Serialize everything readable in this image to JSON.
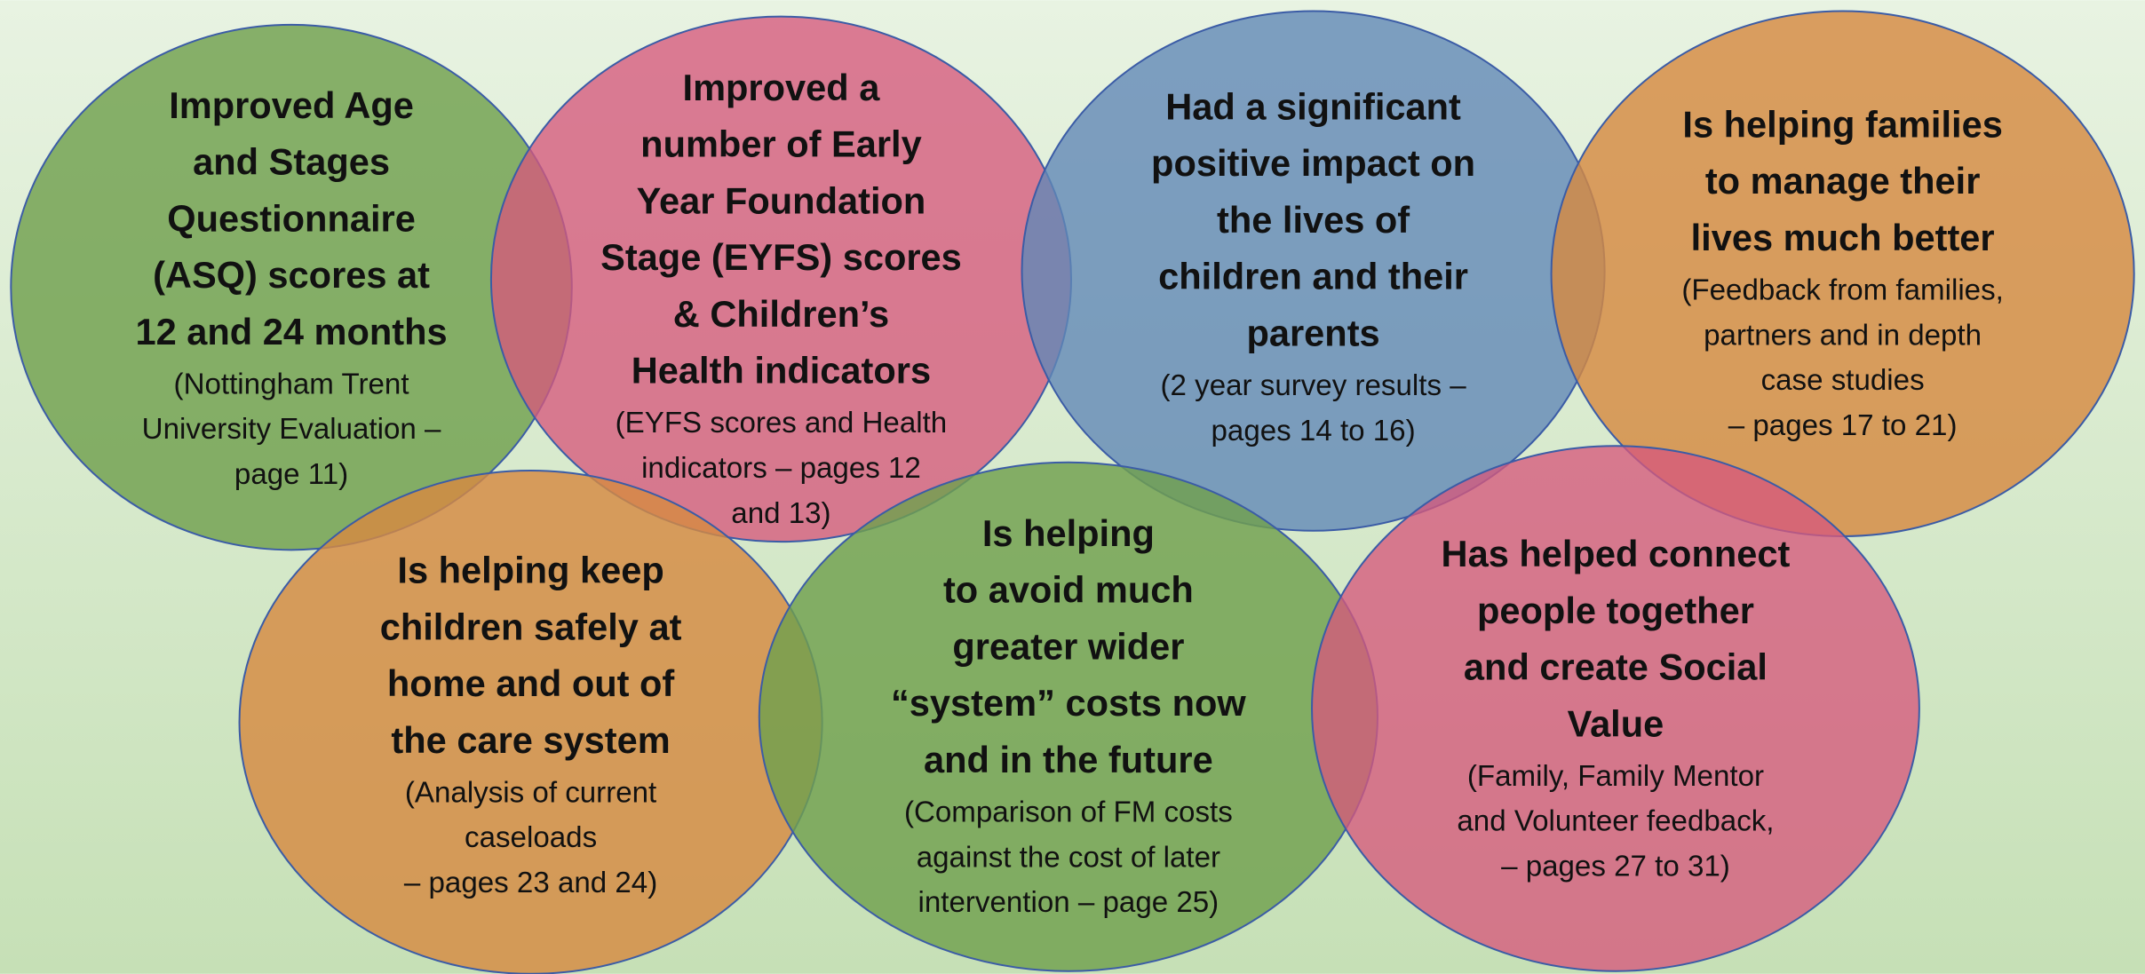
{
  "nodes": [
    {
      "title": [
        "Improved Age",
        "and Stages",
        "Questionnaire",
        "(ASQ) scores at",
        "12 and 24 months"
      ],
      "detail": [
        "(Nottingham Trent",
        "University Evaluation –",
        "page 11)"
      ]
    },
    {
      "title": [
        "Improved a",
        "number of Early",
        "Year Foundation",
        "Stage (EYFS) scores",
        "& Children’s",
        "Health indicators"
      ],
      "detail": [
        "(EYFS scores and Health",
        "indicators – pages 12",
        "and 13)"
      ]
    },
    {
      "title": [
        "Had a significant",
        "positive impact on",
        "the lives of",
        "children and their",
        "parents"
      ],
      "detail": [
        "(2 year survey results –",
        "pages 14 to 16)"
      ]
    },
    {
      "title": [
        "Is helping families",
        "to manage their",
        "lives much better"
      ],
      "detail": [
        "(Feedback from families,",
        "partners and in depth",
        "case studies",
        "– pages 17 to 21)"
      ]
    },
    {
      "title": [
        "Is helping keep",
        "children safely at",
        "home and out of",
        "the care system"
      ],
      "detail": [
        "(Analysis of current",
        "caseloads",
        "– pages 23 and 24)"
      ]
    },
    {
      "title": [
        "Is helping",
        "to avoid much",
        "greater wider",
        "“system” costs now",
        "and in the future"
      ],
      "detail": [
        "(Comparison of FM costs",
        "against the cost of later",
        "intervention – page 25)"
      ]
    },
    {
      "title": [
        "Has helped connect",
        "people together",
        "and create Social",
        "Value"
      ],
      "detail": [
        "(Family, Family Mentor",
        "and Volunteer feedback,",
        "– pages 27 to 31)"
      ]
    }
  ]
}
